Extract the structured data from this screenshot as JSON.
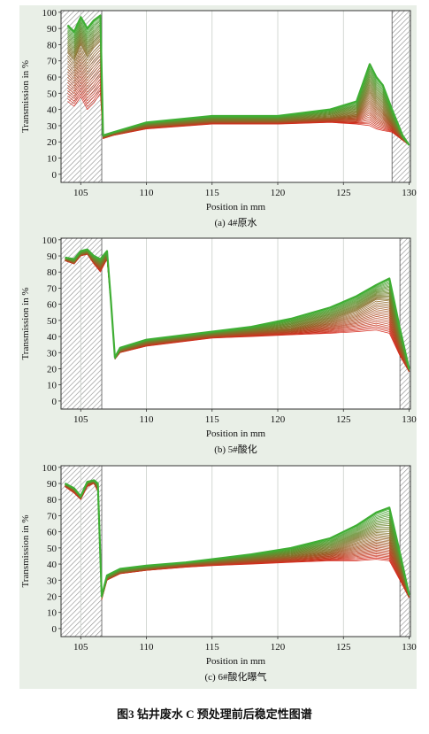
{
  "figure_caption": "图3   钻井废水 C 预处理前后稳定性图谱",
  "colors": {
    "panel_bg": "#e9efe7",
    "plot_bg": "#ffffff",
    "start_scan": "#d62a1e",
    "end_scan": "#3fae34",
    "grid": "#c9cfc9",
    "hatch": "#8c8c8c"
  },
  "chart_data": [
    {
      "type": "line",
      "caption": "(a) 4#原水",
      "xlabel": "Position in mm",
      "ylabel": "Transmission in %",
      "xlim": [
        103.5,
        130.1
      ],
      "ylim": [
        -5,
        101
      ],
      "xticks": [
        105,
        110,
        115,
        120,
        125,
        130
      ],
      "yticks": [
        0,
        10,
        20,
        30,
        40,
        50,
        60,
        70,
        80,
        90,
        100
      ],
      "grid": "vertical",
      "hatched_regions": [
        [
          103.5,
          106.6
        ],
        [
          128.7,
          130.1
        ]
      ],
      "series": [
        {
          "x": [
            104.0,
            104.5,
            105.0,
            105.5,
            106.0,
            106.5,
            106.7,
            107.5,
            110,
            115,
            120,
            124,
            126,
            127,
            127.5,
            128,
            128.7,
            129.5,
            130
          ],
          "y": [
            45,
            42,
            48,
            40,
            44,
            50,
            22,
            24,
            28,
            31,
            31,
            32,
            31,
            30,
            28,
            27,
            26,
            21,
            18
          ]
        },
        {
          "x": [
            104.0,
            104.5,
            105.0,
            105.5,
            106.0,
            106.5,
            106.7,
            107.5,
            110,
            115,
            120,
            124,
            126,
            127,
            127.5,
            128,
            128.7,
            129.5,
            130
          ],
          "y": [
            75,
            70,
            80,
            72,
            78,
            82,
            23,
            25,
            30,
            33,
            33,
            35,
            37,
            50,
            44,
            40,
            32,
            22,
            18
          ]
        },
        {
          "x": [
            104.0,
            104.5,
            105.0,
            105.5,
            106.0,
            106.5,
            106.7,
            107.5,
            110,
            115,
            120,
            124,
            126,
            127,
            127.5,
            128,
            128.7,
            129.5,
            130
          ],
          "y": [
            92,
            88,
            97,
            90,
            95,
            98,
            24,
            26,
            32,
            36,
            36,
            40,
            45,
            68,
            60,
            55,
            40,
            24,
            18
          ]
        }
      ]
    },
    {
      "type": "line",
      "caption": "(b) 5#酸化",
      "xlabel": "Position in mm",
      "ylabel": "Transmission in %",
      "xlim": [
        103.5,
        130.1
      ],
      "ylim": [
        -5,
        101
      ],
      "xticks": [
        105,
        110,
        115,
        120,
        125,
        130
      ],
      "yticks": [
        0,
        10,
        20,
        30,
        40,
        50,
        60,
        70,
        80,
        90,
        100
      ],
      "grid": "vertical",
      "hatched_regions": [
        [
          103.5,
          106.6
        ],
        [
          129.3,
          130.1
        ]
      ],
      "series": [
        {
          "x": [
            103.8,
            104.5,
            105.0,
            105.5,
            106.0,
            106.5,
            107.0,
            107.3,
            107.6,
            108,
            110,
            113,
            115,
            118,
            121,
            124,
            126,
            127.5,
            128.5,
            129.3,
            130
          ],
          "y": [
            87,
            85,
            90,
            91,
            85,
            80,
            88,
            60,
            26,
            30,
            34,
            37,
            39,
            40,
            41,
            42,
            43,
            44,
            42,
            28,
            18
          ]
        },
        {
          "x": [
            103.8,
            104.5,
            105.0,
            105.5,
            106.0,
            106.5,
            107.0,
            107.3,
            107.6,
            108,
            110,
            113,
            115,
            118,
            121,
            124,
            126,
            127.5,
            128.5,
            129.3,
            130
          ],
          "y": [
            88,
            86,
            91,
            92,
            87,
            84,
            90,
            60,
            26,
            31,
            36,
            39,
            41,
            43,
            45,
            50,
            56,
            63,
            62,
            35,
            19
          ]
        },
        {
          "x": [
            103.8,
            104.5,
            105.0,
            105.5,
            106.0,
            106.5,
            107.0,
            107.3,
            107.6,
            108,
            110,
            113,
            115,
            118,
            121,
            124,
            126,
            127.5,
            128.5,
            129.3,
            130
          ],
          "y": [
            89,
            88,
            93,
            94,
            90,
            88,
            93,
            62,
            27,
            33,
            38,
            41,
            43,
            46,
            51,
            58,
            65,
            72,
            76,
            45,
            20
          ]
        }
      ]
    },
    {
      "type": "line",
      "caption": "(c) 6#酸化曝气",
      "xlabel": "Position in mm",
      "ylabel": "Transmission in %",
      "xlim": [
        103.5,
        130.1
      ],
      "ylim": [
        -5,
        101
      ],
      "xticks": [
        105,
        110,
        115,
        120,
        125,
        130
      ],
      "yticks": [
        0,
        10,
        20,
        30,
        40,
        50,
        60,
        70,
        80,
        90,
        100
      ],
      "grid": "vertical",
      "hatched_regions": [
        [
          103.5,
          106.6
        ],
        [
          129.3,
          130.1
        ]
      ],
      "series": [
        {
          "x": [
            103.8,
            104.5,
            105.0,
            105.5,
            106.0,
            106.3,
            106.6,
            107.0,
            108,
            110,
            113,
            115,
            118,
            121,
            124,
            126,
            127.5,
            128.5,
            129.3,
            130
          ],
          "y": [
            88,
            84,
            80,
            88,
            90,
            85,
            18,
            30,
            34,
            36,
            38,
            39,
            40,
            41,
            42,
            42,
            43,
            42,
            30,
            19
          ]
        },
        {
          "x": [
            103.8,
            104.5,
            105.0,
            105.5,
            106.0,
            106.3,
            106.6,
            107.0,
            108,
            110,
            113,
            115,
            118,
            121,
            124,
            126,
            127.5,
            128.5,
            129.3,
            130
          ],
          "y": [
            89,
            86,
            81,
            90,
            91,
            88,
            19,
            31,
            35,
            37,
            40,
            41,
            43,
            45,
            48,
            54,
            58,
            57,
            38,
            20
          ]
        },
        {
          "x": [
            103.8,
            104.5,
            105.0,
            105.5,
            106.0,
            106.3,
            106.6,
            107.0,
            108,
            110,
            113,
            115,
            118,
            121,
            124,
            126,
            127.5,
            128.5,
            129.3,
            130
          ],
          "y": [
            90,
            87,
            82,
            91,
            92,
            90,
            20,
            33,
            37,
            39,
            41,
            43,
            46,
            50,
            56,
            64,
            72,
            75,
            47,
            21
          ]
        }
      ]
    }
  ]
}
